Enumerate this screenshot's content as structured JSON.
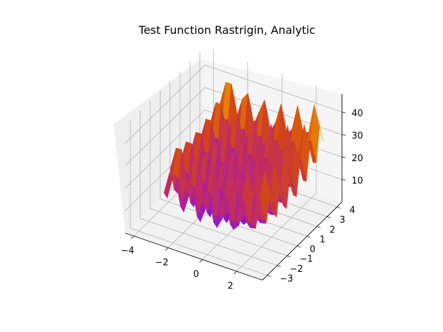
{
  "chart_data": {
    "type": "surface",
    "title": "Test Function Rastrigin, Analytic",
    "xlabel": "",
    "ylabel": "",
    "zlabel": "",
    "function": "Rastrigin",
    "x_ticks": [
      -4,
      -2,
      0,
      2
    ],
    "y_ticks": [
      -3,
      -2,
      -1,
      0,
      1,
      2,
      3,
      4
    ],
    "z_ticks": [
      10,
      20,
      30,
      40
    ],
    "x_range": [
      -4.5,
      3.5
    ],
    "y_range": [
      -3.5,
      4.5
    ],
    "z_range": [
      0,
      48
    ],
    "grid": true,
    "colormap": "gnuplot",
    "colors": {
      "pane_back": "#efefef",
      "pane_side": "#f5f5f5",
      "pane_floor": "#f2f2f2",
      "low": "#3b0a8c",
      "mid": "#b0206a",
      "high": "#ffc400"
    }
  }
}
